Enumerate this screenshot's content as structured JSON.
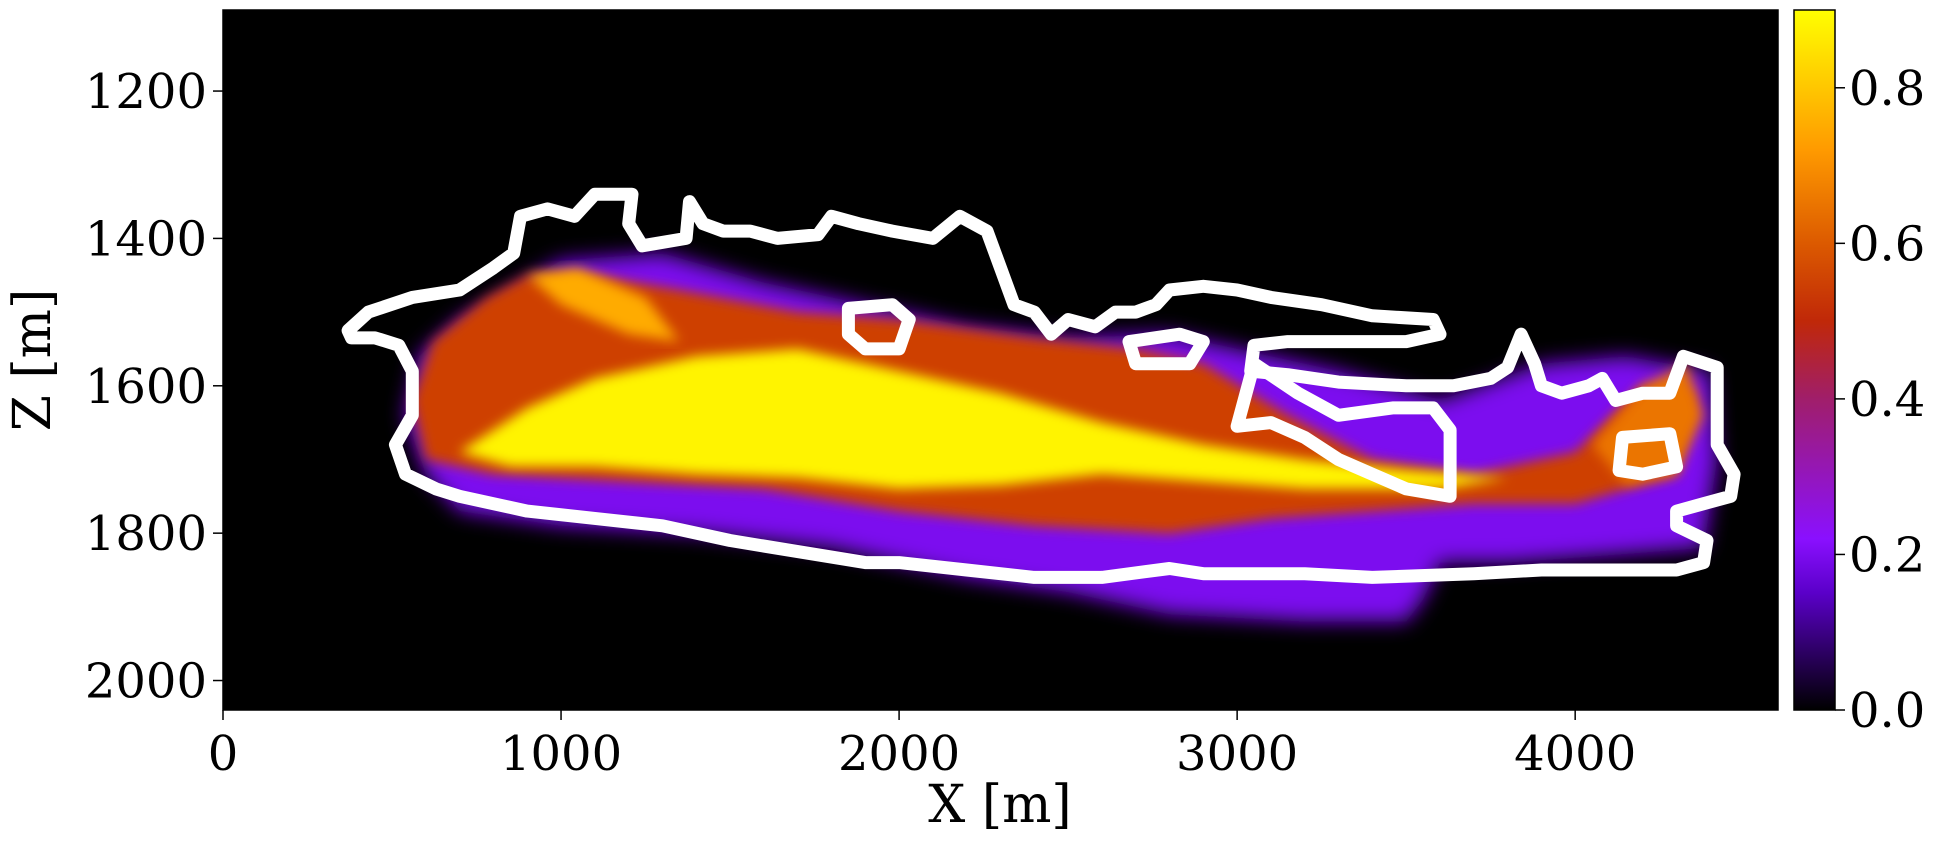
{
  "chart_data": {
    "type": "heatmap",
    "title": "",
    "xlabel": "X [m]",
    "ylabel": "Z [m]",
    "xlim": [
      0,
      4600
    ],
    "ylim": [
      2040,
      1090
    ],
    "y_axis_inverted": true,
    "xticks": [
      {
        "value": 0,
        "label": "0"
      },
      {
        "value": 1000,
        "label": "1000"
      },
      {
        "value": 2000,
        "label": "2000"
      },
      {
        "value": 3000,
        "label": "3000"
      },
      {
        "value": 4000,
        "label": "4000"
      }
    ],
    "yticks": [
      {
        "value": 1200,
        "label": "1200"
      },
      {
        "value": 1400,
        "label": "1400"
      },
      {
        "value": 1600,
        "label": "1600"
      },
      {
        "value": 1800,
        "label": "1800"
      },
      {
        "value": 2000,
        "label": "2000"
      }
    ],
    "colormap": "gnuplot",
    "background_color": "#000000",
    "colorbar": {
      "range": [
        0.0,
        0.9
      ],
      "ticks": [
        {
          "value": 0.0,
          "label": "0.0"
        },
        {
          "value": 0.2,
          "label": "0.2"
        },
        {
          "value": 0.4,
          "label": "0.4"
        },
        {
          "value": 0.6,
          "label": "0.6"
        },
        {
          "value": 0.8,
          "label": "0.8"
        }
      ],
      "stops": [
        {
          "value": 0.0,
          "color": "#000000"
        },
        {
          "value": 0.15,
          "color": "#5a00c8"
        },
        {
          "value": 0.22,
          "color": "#8a10ff"
        },
        {
          "value": 0.4,
          "color": "#a01e6a"
        },
        {
          "value": 0.5,
          "color": "#c02808"
        },
        {
          "value": 0.6,
          "color": "#dc5a00"
        },
        {
          "value": 0.72,
          "color": "#ff9a00"
        },
        {
          "value": 0.82,
          "color": "#ffd200"
        },
        {
          "value": 0.9,
          "color": "#ffff00"
        }
      ]
    },
    "field": {
      "regions": [
        {
          "name": "outer-halo",
          "value": 0.2,
          "points": [
            [
              540,
              1640
            ],
            [
              580,
              1560
            ],
            [
              700,
              1510
            ],
            [
              850,
              1470
            ],
            [
              1000,
              1430
            ],
            [
              1300,
              1420
            ],
            [
              1600,
              1460
            ],
            [
              1900,
              1490
            ],
            [
              2200,
              1520
            ],
            [
              2500,
              1535
            ],
            [
              2800,
              1530
            ],
            [
              3000,
              1550
            ],
            [
              3300,
              1580
            ],
            [
              3600,
              1620
            ],
            [
              3900,
              1570
            ],
            [
              4150,
              1560
            ],
            [
              4400,
              1580
            ],
            [
              4420,
              1700
            ],
            [
              4380,
              1820
            ],
            [
              4100,
              1830
            ],
            [
              3800,
              1840
            ],
            [
              3600,
              1840
            ],
            [
              3550,
              1890
            ],
            [
              3500,
              1920
            ],
            [
              3200,
              1920
            ],
            [
              2800,
              1910
            ],
            [
              2500,
              1880
            ],
            [
              2200,
              1860
            ],
            [
              1800,
              1820
            ],
            [
              1400,
              1800
            ],
            [
              1000,
              1790
            ],
            [
              700,
              1770
            ],
            [
              600,
              1720
            ]
          ]
        },
        {
          "name": "orange-layer",
          "value": 0.55,
          "points": [
            [
              560,
              1620
            ],
            [
              620,
              1540
            ],
            [
              780,
              1480
            ],
            [
              900,
              1450
            ],
            [
              1100,
              1450
            ],
            [
              1350,
              1470
            ],
            [
              1700,
              1500
            ],
            [
              2000,
              1510
            ],
            [
              2400,
              1535
            ],
            [
              2700,
              1550
            ],
            [
              2900,
              1570
            ],
            [
              3150,
              1640
            ],
            [
              3400,
              1700
            ],
            [
              3700,
              1720
            ],
            [
              4000,
              1690
            ],
            [
              4200,
              1600
            ],
            [
              4350,
              1610
            ],
            [
              4300,
              1720
            ],
            [
              4000,
              1760
            ],
            [
              3700,
              1760
            ],
            [
              3400,
              1770
            ],
            [
              3100,
              1780
            ],
            [
              2800,
              1800
            ],
            [
              2400,
              1790
            ],
            [
              2000,
              1770
            ],
            [
              1600,
              1740
            ],
            [
              1200,
              1730
            ],
            [
              800,
              1720
            ],
            [
              600,
              1700
            ]
          ]
        },
        {
          "name": "yellow-core",
          "value": 0.88,
          "points": [
            [
              700,
              1690
            ],
            [
              900,
              1630
            ],
            [
              1100,
              1590
            ],
            [
              1400,
              1560
            ],
            [
              1700,
              1550
            ],
            [
              2000,
              1580
            ],
            [
              2300,
              1610
            ],
            [
              2600,
              1650
            ],
            [
              2900,
              1680
            ],
            [
              3200,
              1700
            ],
            [
              3500,
              1715
            ],
            [
              3800,
              1725
            ],
            [
              3600,
              1740
            ],
            [
              3200,
              1740
            ],
            [
              2900,
              1730
            ],
            [
              2600,
              1720
            ],
            [
              2300,
              1735
            ],
            [
              2000,
              1740
            ],
            [
              1700,
              1725
            ],
            [
              1400,
              1720
            ],
            [
              1100,
              1710
            ],
            [
              850,
              1710
            ]
          ]
        },
        {
          "name": "upper-wing",
          "value": 0.75,
          "points": [
            [
              900,
              1450
            ],
            [
              1050,
              1440
            ],
            [
              1250,
              1480
            ],
            [
              1350,
              1540
            ],
            [
              1200,
              1530
            ],
            [
              1000,
              1490
            ]
          ]
        },
        {
          "name": "right-lobe",
          "value": 0.65,
          "points": [
            [
              4050,
              1680
            ],
            [
              4200,
              1600
            ],
            [
              4330,
              1570
            ],
            [
              4380,
              1640
            ],
            [
              4300,
              1720
            ],
            [
              4150,
              1735
            ]
          ]
        }
      ],
      "contours": [
        {
          "name": "contour-main",
          "value": 1.0,
          "points": [
            [
              370,
              1525
            ],
            [
              430,
              1500
            ],
            [
              560,
              1480
            ],
            [
              700,
              1470
            ],
            [
              800,
              1440
            ],
            [
              860,
              1420
            ],
            [
              880,
              1370
            ],
            [
              960,
              1360
            ],
            [
              1040,
              1370
            ],
            [
              1100,
              1340
            ],
            [
              1210,
              1340
            ],
            [
              1200,
              1380
            ],
            [
              1240,
              1410
            ],
            [
              1370,
              1400
            ],
            [
              1380,
              1350
            ],
            [
              1420,
              1380
            ],
            [
              1480,
              1390
            ],
            [
              1560,
              1390
            ],
            [
              1640,
              1400
            ],
            [
              1760,
              1395
            ],
            [
              1800,
              1370
            ],
            [
              1880,
              1380
            ],
            [
              1980,
              1390
            ],
            [
              2100,
              1400
            ],
            [
              2180,
              1370
            ],
            [
              2260,
              1390
            ],
            [
              2300,
              1440
            ],
            [
              2340,
              1490
            ],
            [
              2400,
              1500
            ],
            [
              2450,
              1530
            ],
            [
              2500,
              1510
            ],
            [
              2580,
              1520
            ],
            [
              2640,
              1500
            ],
            [
              2700,
              1500
            ],
            [
              2760,
              1490
            ],
            [
              2800,
              1470
            ],
            [
              2900,
              1465
            ],
            [
              3000,
              1470
            ],
            [
              3100,
              1480
            ],
            [
              3250,
              1490
            ],
            [
              3400,
              1505
            ],
            [
              3580,
              1510
            ],
            [
              3600,
              1530
            ],
            [
              3500,
              1540
            ],
            [
              3300,
              1540
            ],
            [
              3150,
              1540
            ],
            [
              3050,
              1545
            ],
            [
              3040,
              1580
            ],
            [
              3150,
              1585
            ],
            [
              3300,
              1595
            ],
            [
              3500,
              1600
            ],
            [
              3640,
              1600
            ],
            [
              3750,
              1590
            ],
            [
              3800,
              1575
            ],
            [
              3840,
              1530
            ],
            [
              3880,
              1570
            ],
            [
              3900,
              1600
            ],
            [
              3960,
              1610
            ],
            [
              4040,
              1600
            ],
            [
              4080,
              1590
            ],
            [
              4120,
              1620
            ],
            [
              4200,
              1610
            ],
            [
              4280,
              1610
            ],
            [
              4320,
              1560
            ],
            [
              4420,
              1575
            ],
            [
              4420,
              1680
            ],
            [
              4470,
              1720
            ],
            [
              4460,
              1750
            ],
            [
              4380,
              1760
            ],
            [
              4300,
              1770
            ],
            [
              4300,
              1790
            ],
            [
              4390,
              1810
            ],
            [
              4380,
              1840
            ],
            [
              4300,
              1850
            ],
            [
              4100,
              1850
            ],
            [
              3900,
              1850
            ],
            [
              3700,
              1855
            ],
            [
              3400,
              1860
            ],
            [
              3200,
              1855
            ],
            [
              3000,
              1855
            ],
            [
              2900,
              1855
            ],
            [
              2800,
              1848
            ],
            [
              2600,
              1860
            ],
            [
              2400,
              1860
            ],
            [
              2200,
              1850
            ],
            [
              2000,
              1840
            ],
            [
              1900,
              1840
            ],
            [
              1700,
              1825
            ],
            [
              1500,
              1810
            ],
            [
              1300,
              1790
            ],
            [
              1100,
              1780
            ],
            [
              900,
              1770
            ],
            [
              700,
              1750
            ],
            [
              630,
              1740
            ],
            [
              540,
              1720
            ],
            [
              510,
              1680
            ],
            [
              560,
              1640
            ],
            [
              560,
              1580
            ],
            [
              520,
              1545
            ],
            [
              450,
              1535
            ],
            [
              380,
              1535
            ]
          ]
        },
        {
          "name": "contour-inner-1",
          "value": 1.0,
          "points": [
            [
              3050,
              1570
            ],
            [
              3180,
              1610
            ],
            [
              3300,
              1640
            ],
            [
              3460,
              1630
            ],
            [
              3580,
              1630
            ],
            [
              3630,
              1660
            ],
            [
              3630,
              1750
            ],
            [
              3500,
              1740
            ],
            [
              3400,
              1720
            ],
            [
              3300,
              1700
            ],
            [
              3200,
              1670
            ],
            [
              3100,
              1650
            ],
            [
              3000,
              1655
            ]
          ]
        },
        {
          "name": "contour-inner-2",
          "value": 1.0,
          "points": [
            [
              4140,
              1670
            ],
            [
              4280,
              1665
            ],
            [
              4300,
              1710
            ],
            [
              4200,
              1720
            ],
            [
              4130,
              1715
            ]
          ]
        },
        {
          "name": "contour-inner-3",
          "value": 1.0,
          "points": [
            [
              1850,
              1495
            ],
            [
              1980,
              1490
            ],
            [
              2030,
              1510
            ],
            [
              2000,
              1550
            ],
            [
              1900,
              1550
            ],
            [
              1850,
              1530
            ]
          ]
        },
        {
          "name": "contour-inner-4",
          "value": 1.0,
          "points": [
            [
              2680,
              1540
            ],
            [
              2830,
              1530
            ],
            [
              2900,
              1540
            ],
            [
              2860,
              1570
            ],
            [
              2700,
              1570
            ]
          ]
        }
      ]
    }
  }
}
